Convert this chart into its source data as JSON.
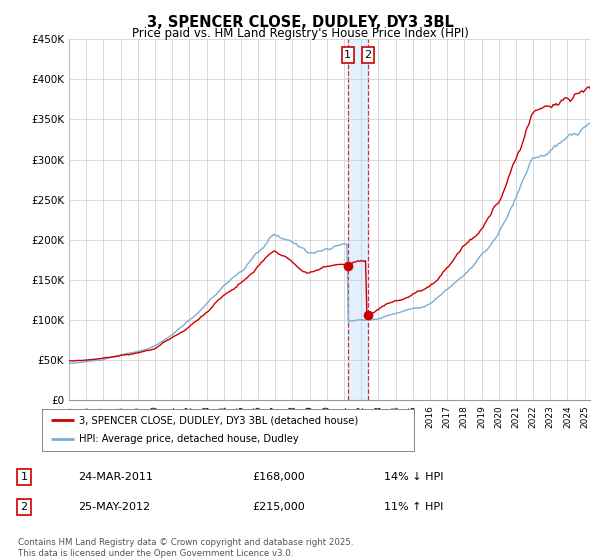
{
  "title": "3, SPENCER CLOSE, DUDLEY, DY3 3BL",
  "subtitle": "Price paid vs. HM Land Registry's House Price Index (HPI)",
  "y_ticks": [
    0,
    50000,
    100000,
    150000,
    200000,
    250000,
    300000,
    350000,
    400000,
    450000
  ],
  "y_tick_labels": [
    "£0",
    "£50K",
    "£100K",
    "£150K",
    "£200K",
    "£250K",
    "£300K",
    "£350K",
    "£400K",
    "£450K"
  ],
  "red_line_label": "3, SPENCER CLOSE, DUDLEY, DY3 3BL (detached house)",
  "blue_line_label": "HPI: Average price, detached house, Dudley",
  "marker1_year": 2011.22,
  "marker1_price": 168000,
  "marker1_date": "24-MAR-2011",
  "marker1_hpi": "14% ↓ HPI",
  "marker2_year": 2012.4,
  "marker2_price": 215000,
  "marker2_date": "25-MAY-2012",
  "marker2_hpi": "11% ↑ HPI",
  "footer": "Contains HM Land Registry data © Crown copyright and database right 2025.\nThis data is licensed under the Open Government Licence v3.0.",
  "red_color": "#cc0000",
  "blue_color": "#7aaed6",
  "shade_color": "#ddeeff",
  "grid_color": "#cccccc",
  "background_color": "#ffffff"
}
